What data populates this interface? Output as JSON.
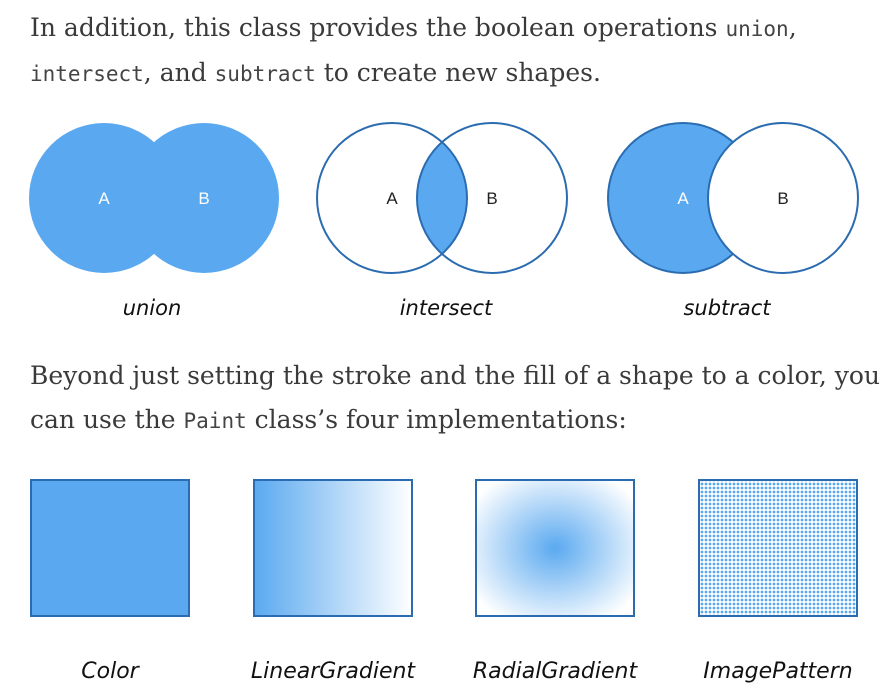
{
  "paragraph1": {
    "before": "In addition, this class provides the boolean operations ",
    "code_union": "union",
    "sep1": ", ",
    "code_intersect": "intersect",
    "sep2": ", and ",
    "code_subtract": "subtract",
    "after": " to create new shapes."
  },
  "operations": [
    {
      "caption": "union",
      "letter_a": "A",
      "letter_b": "B"
    },
    {
      "caption": "intersect",
      "letter_a": "A",
      "letter_b": "B"
    },
    {
      "caption": "subtract",
      "letter_a": "A",
      "letter_b": "B"
    }
  ],
  "paragraph2": {
    "before": "Beyond just setting the stroke and the fill of a shape to a color, you can use the ",
    "code_paint": "Paint",
    "after": " class’s four implementations:"
  },
  "paints": [
    {
      "caption": "Color"
    },
    {
      "caption": "LinearGradient"
    },
    {
      "caption": "RadialGradient"
    },
    {
      "caption": "ImagePattern"
    }
  ],
  "colors": {
    "fill": "#5aa9f0",
    "stroke": "#2b6cb0",
    "text": "#3a3a3a"
  }
}
